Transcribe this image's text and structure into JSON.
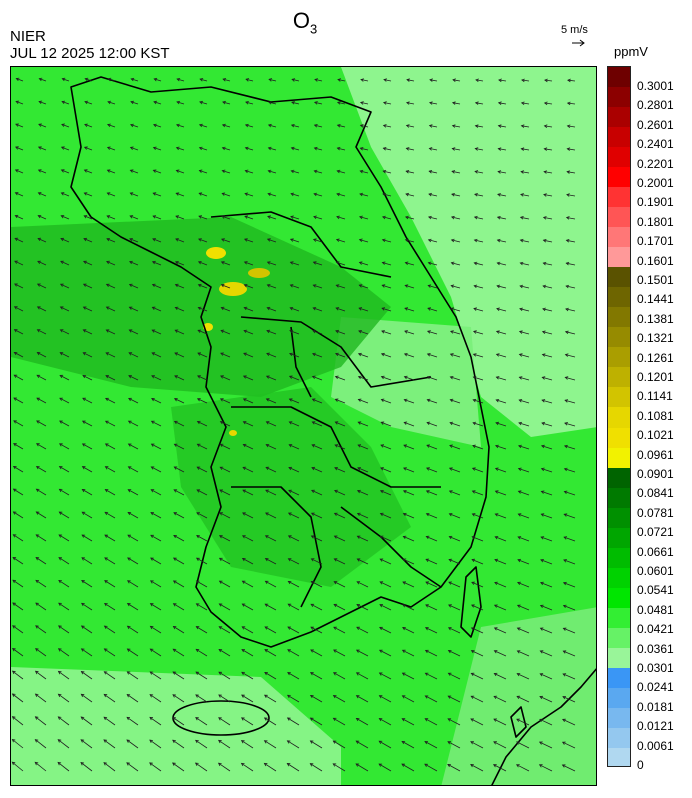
{
  "header": {
    "agency": "NIER",
    "timestamp": "JUL 12 2025 12:00 KST",
    "title_main": "O",
    "title_sub": "3"
  },
  "wind_scale": {
    "label": "5 m/s",
    "arrow_icon": "reference-wind-arrow"
  },
  "unit": "ppmV",
  "legend": {
    "labels": [
      "0.3001",
      "0.2801",
      "0.2601",
      "0.2401",
      "0.2201",
      "0.2001",
      "0.1901",
      "0.1801",
      "0.1701",
      "0.1601",
      "0.1501",
      "0.1441",
      "0.1381",
      "0.1321",
      "0.1261",
      "0.1201",
      "0.1141",
      "0.1081",
      "0.1021",
      "0.0961",
      "0.0901",
      "0.0841",
      "0.0781",
      "0.0721",
      "0.0661",
      "0.0601",
      "0.0541",
      "0.0481",
      "0.0421",
      "0.0361",
      "0.0301",
      "0.0241",
      "0.0181",
      "0.0121",
      "0.0061",
      "0"
    ],
    "colors": [
      "#6e0000",
      "#8c0000",
      "#aa0000",
      "#c80000",
      "#e00000",
      "#ff0000",
      "#ff3333",
      "#ff5555",
      "#ff7777",
      "#ff9999",
      "#5a5200",
      "#6e6500",
      "#827800",
      "#968b00",
      "#aa9e00",
      "#beb100",
      "#d2c400",
      "#e6d700",
      "#f0e000",
      "#f2f200",
      "#006400",
      "#007a00",
      "#009000",
      "#00a600",
      "#00bc00",
      "#00d200",
      "#00e600",
      "#33ee33",
      "#66f266",
      "#99f599",
      "#3a96f5",
      "#5aa8f0",
      "#78b8ef",
      "#94c8ef",
      "#b0d8f0"
    ]
  },
  "map": {
    "dominant_color": "#33e833",
    "land_border_color": "#000000",
    "wind_arrow_color": "#202020"
  }
}
